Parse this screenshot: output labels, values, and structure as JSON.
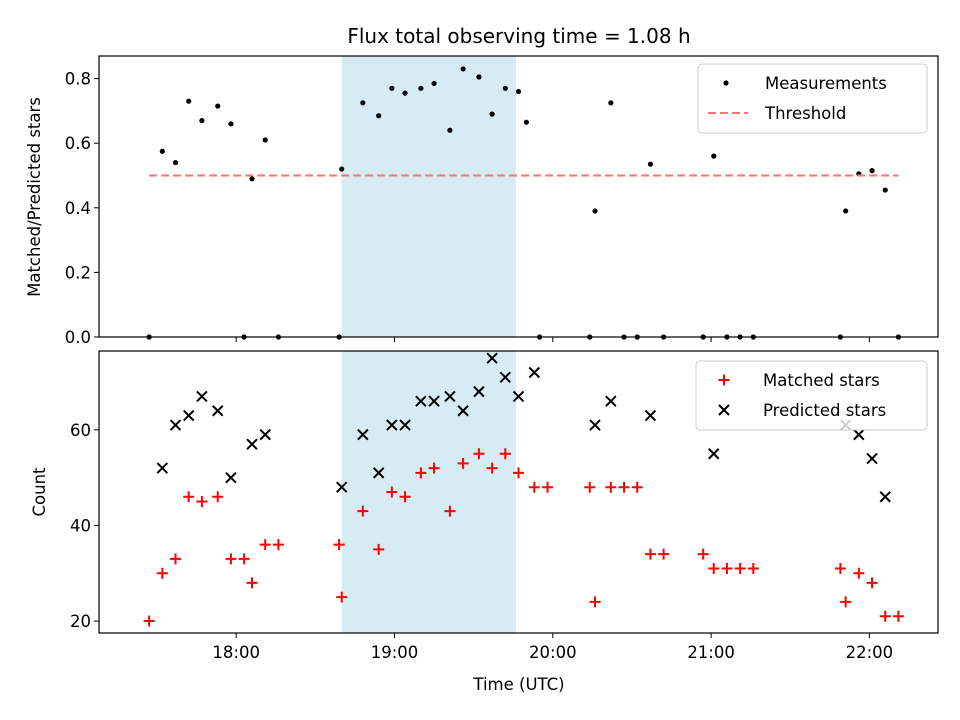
{
  "chart_data": [
    {
      "type": "scatter",
      "title": "Flux total observing time = 1.08 h",
      "xlabel": "",
      "ylabel": "Matched/Predicted stars",
      "ylim": [
        0,
        0.87
      ],
      "yticks": [
        "0.0",
        "0.2",
        "0.4",
        "0.6",
        "0.8"
      ],
      "highlight_span": {
        "x0": "18:40",
        "x1": "19:46",
        "color": "#add8e6"
      },
      "legend_position": "top-right",
      "series": [
        {
          "name": "Measurements",
          "marker": "dot",
          "color": "#000000",
          "points": [
            [
              "17:27",
              0.0
            ],
            [
              "17:32",
              0.575
            ],
            [
              "17:37",
              0.54
            ],
            [
              "17:42",
              0.73
            ],
            [
              "17:47",
              0.67
            ],
            [
              "17:53",
              0.715
            ],
            [
              "17:58",
              0.66
            ],
            [
              "18:03",
              0.0
            ],
            [
              "18:06",
              0.49
            ],
            [
              "18:11",
              0.61
            ],
            [
              "18:16",
              0.0
            ],
            [
              "18:39",
              0.0
            ],
            [
              "18:40",
              0.52
            ],
            [
              "18:48",
              0.725
            ],
            [
              "18:54",
              0.685
            ],
            [
              "18:59",
              0.77
            ],
            [
              "19:04",
              0.755
            ],
            [
              "19:10",
              0.77
            ],
            [
              "19:15",
              0.785
            ],
            [
              "19:21",
              0.64
            ],
            [
              "19:26",
              0.83
            ],
            [
              "19:32",
              0.805
            ],
            [
              "19:37",
              0.69
            ],
            [
              "19:42",
              0.77
            ],
            [
              "19:47",
              0.76
            ],
            [
              "19:50",
              0.665
            ],
            [
              "19:55",
              0.0
            ],
            [
              "20:14",
              0.0
            ],
            [
              "20:16",
              0.39
            ],
            [
              "20:22",
              0.725
            ],
            [
              "20:27",
              0.0
            ],
            [
              "20:32",
              0.0
            ],
            [
              "20:37",
              0.535
            ],
            [
              "20:42",
              0.0
            ],
            [
              "20:57",
              0.0
            ],
            [
              "21:01",
              0.56
            ],
            [
              "21:06",
              0.0
            ],
            [
              "21:11",
              0.0
            ],
            [
              "21:16",
              0.0
            ],
            [
              "21:49",
              0.0
            ],
            [
              "21:51",
              0.39
            ],
            [
              "21:56",
              0.505
            ],
            [
              "22:01",
              0.515
            ],
            [
              "22:06",
              0.455
            ],
            [
              "22:11",
              0.0
            ]
          ]
        },
        {
          "name": "Threshold",
          "line": "dashed",
          "color": "#ff7070",
          "x": [
            "17:27",
            "22:11"
          ],
          "y": [
            0.5,
            0.5
          ]
        }
      ]
    },
    {
      "type": "scatter",
      "title": "",
      "xlabel": "Time (UTC)",
      "ylabel": "Count",
      "ylim": [
        17.5,
        76.5
      ],
      "yticks": [
        "20",
        "40",
        "60"
      ],
      "xlim": [
        "17:08",
        "22:26"
      ],
      "xticks": [
        "18:00",
        "19:00",
        "20:00",
        "21:00",
        "22:00"
      ],
      "highlight_span": {
        "x0": "18:40",
        "x1": "19:46",
        "color": "#add8e6"
      },
      "legend_position": "top-right",
      "series": [
        {
          "name": "Matched stars",
          "marker": "plus",
          "color": "#ff0000",
          "points": [
            [
              "17:27",
              20
            ],
            [
              "17:32",
              30
            ],
            [
              "17:37",
              33
            ],
            [
              "17:42",
              46
            ],
            [
              "17:47",
              45
            ],
            [
              "17:53",
              46
            ],
            [
              "17:58",
              33
            ],
            [
              "18:03",
              33
            ],
            [
              "18:06",
              28
            ],
            [
              "18:11",
              36
            ],
            [
              "18:16",
              36
            ],
            [
              "18:39",
              36
            ],
            [
              "18:40",
              25
            ],
            [
              "18:48",
              43
            ],
            [
              "18:54",
              35
            ],
            [
              "18:59",
              47
            ],
            [
              "19:04",
              46
            ],
            [
              "19:10",
              51
            ],
            [
              "19:15",
              52
            ],
            [
              "19:21",
              43
            ],
            [
              "19:26",
              53
            ],
            [
              "19:32",
              55
            ],
            [
              "19:37",
              52
            ],
            [
              "19:42",
              55
            ],
            [
              "19:47",
              51
            ],
            [
              "19:53",
              48
            ],
            [
              "19:58",
              48
            ],
            [
              "20:14",
              48
            ],
            [
              "20:16",
              24
            ],
            [
              "20:22",
              48
            ],
            [
              "20:27",
              48
            ],
            [
              "20:32",
              48
            ],
            [
              "20:37",
              34
            ],
            [
              "20:42",
              34
            ],
            [
              "20:57",
              34
            ],
            [
              "21:01",
              31
            ],
            [
              "21:06",
              31
            ],
            [
              "21:11",
              31
            ],
            [
              "21:16",
              31
            ],
            [
              "21:49",
              31
            ],
            [
              "21:51",
              24
            ],
            [
              "21:56",
              30
            ],
            [
              "22:01",
              28
            ],
            [
              "22:06",
              21
            ],
            [
              "22:11",
              21
            ]
          ]
        },
        {
          "name": "Predicted stars",
          "marker": "x",
          "color": "#000000",
          "points": [
            [
              "17:32",
              52
            ],
            [
              "17:37",
              61
            ],
            [
              "17:42",
              63
            ],
            [
              "17:47",
              67
            ],
            [
              "17:53",
              64
            ],
            [
              "17:58",
              50
            ],
            [
              "18:06",
              57
            ],
            [
              "18:11",
              59
            ],
            [
              "18:40",
              48
            ],
            [
              "18:48",
              59
            ],
            [
              "18:54",
              51
            ],
            [
              "18:59",
              61
            ],
            [
              "19:04",
              61
            ],
            [
              "19:10",
              66
            ],
            [
              "19:15",
              66
            ],
            [
              "19:21",
              67
            ],
            [
              "19:26",
              64
            ],
            [
              "19:32",
              68
            ],
            [
              "19:37",
              75
            ],
            [
              "19:42",
              71
            ],
            [
              "19:47",
              67
            ],
            [
              "19:53",
              72
            ],
            [
              "20:16",
              61
            ],
            [
              "20:22",
              66
            ],
            [
              "20:37",
              63
            ],
            [
              "21:01",
              55
            ],
            [
              "21:51",
              61
            ],
            [
              "21:56",
              59
            ],
            [
              "22:01",
              54
            ],
            [
              "22:06",
              46
            ]
          ]
        }
      ]
    }
  ]
}
